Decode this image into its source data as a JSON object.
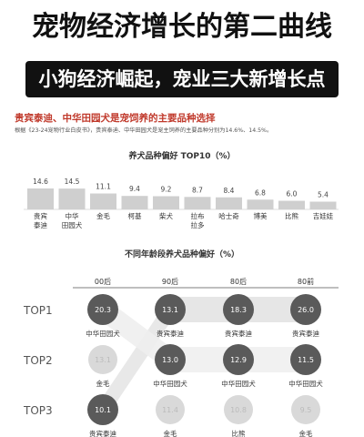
{
  "header": {
    "title": "宠物经济增长的第二曲线",
    "banner": "小狗经济崛起，宠业三大新增长点"
  },
  "section": {
    "title": "贵宾泰迪、中华田园犬是宠饲养的主要品种选择",
    "note": "根据《23-24宠物行业白皮书》，贵宾泰迪、中华田园犬是宠主饲养的主要品种分别为14.6%、14.5%。"
  },
  "colors": {
    "accent": "#c0392b",
    "bar": "#cfcfcf",
    "circle_dark": "#5a5a5a",
    "circle_light": "#d9d9d9"
  },
  "chart_data": [
    {
      "type": "bar",
      "title": "养犬品种偏好 TOP10（%）",
      "categories": [
        "贵宾\n泰迪",
        "中华\n田园犬",
        "金毛",
        "柯基",
        "柴犬",
        "拉布\n拉多",
        "哈士奇",
        "博美",
        "比熊",
        "吉娃娃"
      ],
      "values": [
        14.6,
        14.5,
        11.1,
        9.4,
        9.2,
        8.7,
        8.4,
        6.8,
        6.0,
        5.4
      ],
      "value_labels": [
        "14.6",
        "14.5",
        "11.1",
        "9.4",
        "9.2",
        "8.7",
        "8.4",
        "6.8",
        "6.0",
        "5.4"
      ]
    },
    {
      "type": "table",
      "title": "不同年龄段养犬品种偏好（%）",
      "columns": [
        "00后",
        "90后",
        "80后",
        "80前"
      ],
      "rows": [
        "TOP1",
        "TOP2",
        "TOP3"
      ],
      "cells": [
        [
          {
            "breed": "中华田园犬",
            "value": "20.3"
          },
          {
            "breed": "贵宾泰迪",
            "value": "13.1"
          },
          {
            "breed": "贵宾泰迪",
            "value": "18.3"
          },
          {
            "breed": "贵宾泰迪",
            "value": "26.0"
          }
        ],
        [
          {
            "breed": "金毛",
            "value": "13.1"
          },
          {
            "breed": "中华田园犬",
            "value": "13.0"
          },
          {
            "breed": "中华田园犬",
            "value": "12.9"
          },
          {
            "breed": "中华田园犬",
            "value": "11.5"
          }
        ],
        [
          {
            "breed": "贵宾泰迪",
            "value": "10.1"
          },
          {
            "breed": "金毛",
            "value": "11.4"
          },
          {
            "breed": "比熊",
            "value": "10.8"
          },
          {
            "breed": "金毛",
            "value": "9.5"
          }
        ]
      ]
    }
  ]
}
